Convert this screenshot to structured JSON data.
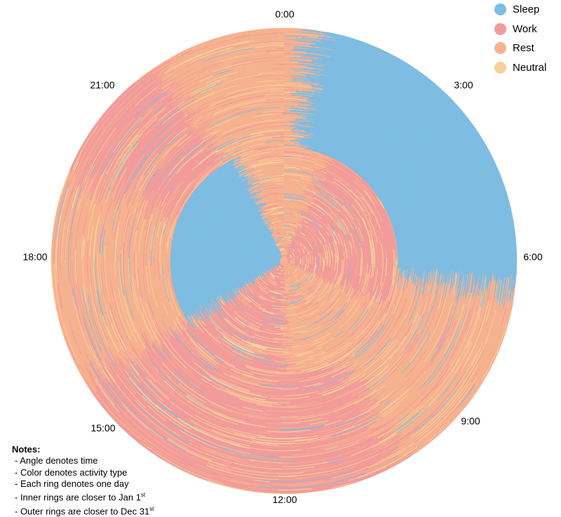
{
  "chart_data": {
    "type": "radial-heatmap",
    "title": "",
    "angle_axis": {
      "unit": "time of day",
      "range_hours": [
        0,
        24
      ],
      "direction": "clockwise",
      "zero_at": "top",
      "tick_labels": [
        "0:00",
        "3:00",
        "6:00",
        "9:00",
        "12:00",
        "15:00",
        "18:00",
        "21:00"
      ]
    },
    "radial_axis": {
      "unit": "day of year",
      "range": [
        1,
        365
      ],
      "inner": "Jan 1",
      "outer": "Dec 31"
    },
    "categories": [
      "Sleep",
      "Work",
      "Rest",
      "Neutral"
    ],
    "colors": {
      "Sleep": "#7dbde3",
      "Work": "#f29b9b",
      "Rest": "#f6b28f",
      "Neutral": "#f7d19a"
    },
    "legend_position": "top-right",
    "regimes": [
      {
        "day_range": [
          1,
          175
        ],
        "typical_schedule": [
          {
            "from": 0.0,
            "to": 1.5,
            "activity": "Rest"
          },
          {
            "from": 1.5,
            "to": 7.8,
            "activity": "Work"
          },
          {
            "from": 7.8,
            "to": 12.0,
            "activity": "Rest"
          },
          {
            "from": 12.0,
            "to": 15.8,
            "activity": "Work"
          },
          {
            "from": 15.8,
            "to": 22.5,
            "activity": "Sleep"
          },
          {
            "from": 22.5,
            "to": 24.0,
            "activity": "Rest"
          }
        ]
      },
      {
        "day_range": [
          176,
          365
        ],
        "typical_schedule": [
          {
            "from": 0.0,
            "to": 0.5,
            "activity": "Rest"
          },
          {
            "from": 0.5,
            "to": 6.6,
            "activity": "Sleep"
          },
          {
            "from": 6.6,
            "to": 10.0,
            "activity": "Rest"
          },
          {
            "from": 10.0,
            "to": 16.0,
            "activity": "Work"
          },
          {
            "from": 16.0,
            "to": 19.5,
            "activity": "Rest"
          },
          {
            "from": 19.5,
            "to": 22.0,
            "activity": "Work"
          },
          {
            "from": 22.0,
            "to": 24.0,
            "activity": "Rest"
          }
        ]
      }
    ]
  },
  "labels": {
    "h0": "0:00",
    "h3": "3:00",
    "h6": "6:00",
    "h9": "9:00",
    "h12": "12:00",
    "h15": "15:00",
    "h18": "18:00",
    "h21": "21:00"
  },
  "legend": [
    {
      "label": "Sleep",
      "color": "#7dbde3"
    },
    {
      "label": "Work",
      "color": "#f29b9b"
    },
    {
      "label": "Rest",
      "color": "#f6b28f"
    },
    {
      "label": "Neutral",
      "color": "#f7d19a"
    }
  ],
  "notes": {
    "title": "Notes:",
    "line1": "- Angle denotes time",
    "line2": "- Color denotes activity type",
    "line3": "- Each ring denotes one day",
    "line4_text": "- Inner rings are closer to Jan 1",
    "line4_sup": "st",
    "line5_text": "- Outer rings are closer to Dec 31",
    "line5_sup": "st"
  }
}
